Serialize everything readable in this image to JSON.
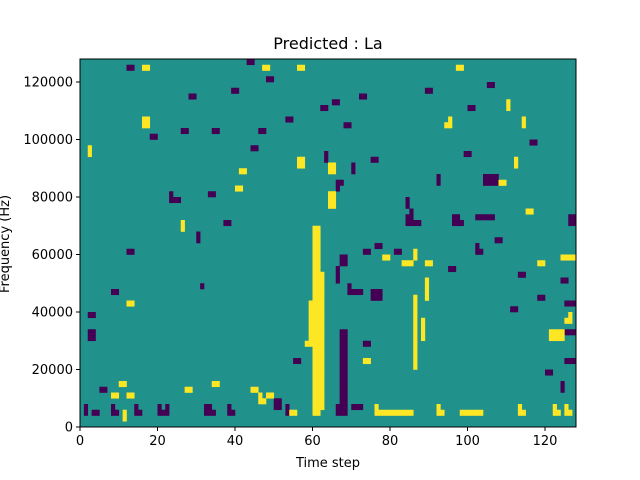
{
  "chart_data": {
    "type": "heatmap",
    "title": "Predicted : La",
    "xlabel": "Time step",
    "ylabel": "Frequency (Hz)",
    "xlim": [
      0,
      128
    ],
    "ylim": [
      0,
      128000
    ],
    "x_ticks": [
      0,
      20,
      40,
      60,
      80,
      100,
      120
    ],
    "x_tick_labels": [
      "0",
      "20",
      "40",
      "60",
      "80",
      "100",
      "120"
    ],
    "y_ticks": [
      0,
      20000,
      40000,
      60000,
      80000,
      100000,
      120000
    ],
    "y_tick_labels": [
      "0",
      "20000",
      "40000",
      "60000",
      "80000",
      "100000",
      "120000"
    ],
    "grid": false,
    "legend": "none",
    "colormap": "viridis",
    "n_time_steps": 128,
    "n_freq_bins": 64,
    "freq_bin_hz": 2000,
    "levels": {
      "low": 0,
      "mid": 1,
      "high": 2
    },
    "background_level": 1,
    "colors": {
      "low": "#440154",
      "mid": "#21918c",
      "high": "#fde725"
    },
    "cells_high": [
      [
        60,
        2
      ],
      [
        60,
        3
      ],
      [
        60,
        4
      ],
      [
        60,
        5
      ],
      [
        60,
        6
      ],
      [
        60,
        7
      ],
      [
        60,
        8
      ],
      [
        60,
        9
      ],
      [
        60,
        10
      ],
      [
        60,
        11
      ],
      [
        60,
        12
      ],
      [
        60,
        13
      ],
      [
        60,
        14
      ],
      [
        60,
        15
      ],
      [
        60,
        16
      ],
      [
        60,
        17
      ],
      [
        60,
        18
      ],
      [
        60,
        19
      ],
      [
        60,
        20
      ],
      [
        60,
        21
      ],
      [
        60,
        22
      ],
      [
        60,
        23
      ],
      [
        60,
        24
      ],
      [
        60,
        25
      ],
      [
        60,
        26
      ],
      [
        60,
        27
      ],
      [
        60,
        28
      ],
      [
        60,
        29
      ],
      [
        60,
        30
      ],
      [
        60,
        31
      ],
      [
        60,
        32
      ],
      [
        60,
        33
      ],
      [
        60,
        34
      ],
      [
        61,
        2
      ],
      [
        61,
        3
      ],
      [
        61,
        4
      ],
      [
        61,
        5
      ],
      [
        61,
        6
      ],
      [
        61,
        7
      ],
      [
        61,
        8
      ],
      [
        61,
        9
      ],
      [
        61,
        10
      ],
      [
        61,
        11
      ],
      [
        61,
        12
      ],
      [
        61,
        13
      ],
      [
        61,
        14
      ],
      [
        61,
        15
      ],
      [
        61,
        16
      ],
      [
        61,
        17
      ],
      [
        61,
        18
      ],
      [
        61,
        19
      ],
      [
        61,
        20
      ],
      [
        61,
        21
      ],
      [
        61,
        22
      ],
      [
        61,
        23
      ],
      [
        61,
        24
      ],
      [
        61,
        25
      ],
      [
        61,
        26
      ],
      [
        61,
        27
      ],
      [
        61,
        28
      ],
      [
        61,
        29
      ],
      [
        61,
        30
      ],
      [
        61,
        31
      ],
      [
        61,
        32
      ],
      [
        61,
        33
      ],
      [
        61,
        34
      ],
      [
        62,
        3
      ],
      [
        62,
        4
      ],
      [
        62,
        5
      ],
      [
        62,
        6
      ],
      [
        62,
        7
      ],
      [
        62,
        8
      ],
      [
        62,
        9
      ],
      [
        62,
        10
      ],
      [
        62,
        11
      ],
      [
        62,
        12
      ],
      [
        62,
        13
      ],
      [
        62,
        14
      ],
      [
        62,
        15
      ],
      [
        62,
        16
      ],
      [
        62,
        17
      ],
      [
        62,
        18
      ],
      [
        62,
        19
      ],
      [
        62,
        20
      ],
      [
        62,
        21
      ],
      [
        62,
        22
      ],
      [
        62,
        23
      ],
      [
        62,
        24
      ],
      [
        62,
        25
      ],
      [
        62,
        26
      ],
      [
        59,
        14
      ],
      [
        59,
        15
      ],
      [
        59,
        16
      ],
      [
        59,
        17
      ],
      [
        59,
        18
      ],
      [
        59,
        19
      ],
      [
        59,
        20
      ],
      [
        59,
        21
      ],
      [
        64,
        44
      ],
      [
        64,
        45
      ],
      [
        65,
        44
      ],
      [
        65,
        45
      ],
      [
        64,
        38
      ],
      [
        64,
        39
      ],
      [
        65,
        38
      ],
      [
        65,
        39
      ],
      [
        64,
        40
      ],
      [
        65,
        40
      ],
      [
        56,
        45
      ],
      [
        57,
        45
      ],
      [
        56,
        46
      ],
      [
        57,
        46
      ],
      [
        76,
        2
      ],
      [
        76,
        3
      ],
      [
        77,
        2
      ],
      [
        78,
        2
      ],
      [
        79,
        2
      ],
      [
        80,
        2
      ],
      [
        81,
        2
      ],
      [
        82,
        2
      ],
      [
        83,
        2
      ],
      [
        84,
        2
      ],
      [
        85,
        2
      ],
      [
        86,
        10
      ],
      [
        86,
        11
      ],
      [
        86,
        12
      ],
      [
        86,
        13
      ],
      [
        86,
        14
      ],
      [
        86,
        15
      ],
      [
        86,
        16
      ],
      [
        86,
        17
      ],
      [
        86,
        18
      ],
      [
        86,
        19
      ],
      [
        86,
        20
      ],
      [
        86,
        21
      ],
      [
        86,
        22
      ],
      [
        88,
        15
      ],
      [
        88,
        16
      ],
      [
        88,
        17
      ],
      [
        88,
        18
      ],
      [
        89,
        22
      ],
      [
        89,
        23
      ],
      [
        89,
        24
      ],
      [
        89,
        25
      ],
      [
        92,
        2
      ],
      [
        92,
        3
      ],
      [
        93,
        2
      ],
      [
        98,
        2
      ],
      [
        99,
        2
      ],
      [
        100,
        2
      ],
      [
        101,
        2
      ],
      [
        102,
        2
      ],
      [
        103,
        2
      ],
      [
        113,
        2
      ],
      [
        113,
        3
      ],
      [
        114,
        2
      ],
      [
        122,
        2
      ],
      [
        122,
        3
      ],
      [
        123,
        2
      ],
      [
        125,
        2
      ],
      [
        125,
        3
      ],
      [
        126,
        2
      ],
      [
        121,
        15
      ],
      [
        121,
        16
      ],
      [
        122,
        15
      ],
      [
        122,
        16
      ],
      [
        123,
        15
      ],
      [
        123,
        16
      ],
      [
        124,
        15
      ],
      [
        124,
        16
      ],
      [
        114,
        52
      ],
      [
        114,
        53
      ],
      [
        110,
        55
      ],
      [
        110,
        56
      ],
      [
        112,
        45
      ],
      [
        112,
        46
      ],
      [
        47,
        62
      ],
      [
        48,
        62
      ],
      [
        56,
        62
      ],
      [
        57,
        62
      ],
      [
        16,
        62
      ],
      [
        17,
        62
      ],
      [
        97,
        62
      ],
      [
        98,
        62
      ],
      [
        8,
        5
      ],
      [
        9,
        5
      ],
      [
        10,
        7
      ],
      [
        11,
        7
      ],
      [
        12,
        5
      ],
      [
        13,
        5
      ],
      [
        11,
        1
      ],
      [
        11,
        2
      ],
      [
        27,
        6
      ],
      [
        28,
        6
      ],
      [
        34,
        7
      ],
      [
        35,
        7
      ],
      [
        44,
        6
      ],
      [
        45,
        6
      ],
      [
        46,
        4
      ],
      [
        46,
        5
      ],
      [
        47,
        4
      ],
      [
        48,
        5
      ],
      [
        49,
        5
      ],
      [
        2,
        47
      ],
      [
        2,
        48
      ],
      [
        26,
        34
      ],
      [
        26,
        35
      ],
      [
        16,
        52
      ],
      [
        16,
        53
      ],
      [
        17,
        52
      ],
      [
        17,
        53
      ],
      [
        12,
        21
      ],
      [
        13,
        21
      ],
      [
        40,
        41
      ],
      [
        41,
        41
      ],
      [
        41,
        44
      ],
      [
        42,
        44
      ],
      [
        54,
        2
      ],
      [
        55,
        2
      ],
      [
        58,
        14
      ],
      [
        73,
        11
      ],
      [
        74,
        11
      ],
      [
        78,
        29
      ],
      [
        79,
        29
      ],
      [
        83,
        28
      ],
      [
        84,
        28
      ],
      [
        85,
        28
      ],
      [
        86,
        29
      ],
      [
        86,
        30
      ],
      [
        89,
        28
      ],
      [
        90,
        28
      ],
      [
        94,
        52
      ],
      [
        95,
        52
      ],
      [
        95,
        53
      ],
      [
        108,
        42
      ],
      [
        109,
        42
      ],
      [
        115,
        37
      ],
      [
        116,
        37
      ],
      [
        118,
        28
      ],
      [
        119,
        28
      ],
      [
        124,
        29
      ],
      [
        125,
        29
      ],
      [
        126,
        29
      ],
      [
        127,
        29
      ],
      [
        125,
        18
      ],
      [
        126,
        18
      ],
      [
        126,
        19
      ]
    ],
    "cells_low": [
      [
        1,
        2
      ],
      [
        1,
        3
      ],
      [
        8,
        2
      ],
      [
        8,
        3
      ],
      [
        9,
        2
      ],
      [
        14,
        2
      ],
      [
        14,
        3
      ],
      [
        15,
        2
      ],
      [
        20,
        2
      ],
      [
        20,
        3
      ],
      [
        21,
        2
      ],
      [
        22,
        2
      ],
      [
        22,
        3
      ],
      [
        32,
        2
      ],
      [
        32,
        3
      ],
      [
        33,
        2
      ],
      [
        33,
        3
      ],
      [
        34,
        2
      ],
      [
        38,
        2
      ],
      [
        38,
        3
      ],
      [
        39,
        2
      ],
      [
        66,
        2
      ],
      [
        66,
        3
      ],
      [
        67,
        2
      ],
      [
        67,
        3
      ],
      [
        67,
        4
      ],
      [
        67,
        5
      ],
      [
        67,
        6
      ],
      [
        67,
        7
      ],
      [
        67,
        8
      ],
      [
        67,
        9
      ],
      [
        67,
        10
      ],
      [
        67,
        11
      ],
      [
        67,
        12
      ],
      [
        67,
        13
      ],
      [
        67,
        14
      ],
      [
        67,
        15
      ],
      [
        67,
        16
      ],
      [
        68,
        2
      ],
      [
        68,
        3
      ],
      [
        68,
        4
      ],
      [
        68,
        5
      ],
      [
        68,
        6
      ],
      [
        68,
        7
      ],
      [
        68,
        8
      ],
      [
        68,
        9
      ],
      [
        68,
        10
      ],
      [
        68,
        11
      ],
      [
        68,
        12
      ],
      [
        68,
        13
      ],
      [
        68,
        14
      ],
      [
        68,
        15
      ],
      [
        68,
        16
      ],
      [
        66,
        25
      ],
      [
        66,
        26
      ],
      [
        66,
        27
      ],
      [
        67,
        28
      ],
      [
        67,
        29
      ],
      [
        68,
        28
      ],
      [
        68,
        29
      ],
      [
        69,
        23
      ],
      [
        69,
        24
      ],
      [
        70,
        23
      ],
      [
        71,
        23
      ],
      [
        72,
        23
      ],
      [
        73,
        30
      ],
      [
        74,
        30
      ],
      [
        84,
        35
      ],
      [
        84,
        36
      ],
      [
        85,
        35
      ],
      [
        85,
        36
      ],
      [
        85,
        37
      ],
      [
        86,
        35
      ],
      [
        87,
        35
      ],
      [
        96,
        35
      ],
      [
        96,
        36
      ],
      [
        97,
        35
      ],
      [
        97,
        36
      ],
      [
        98,
        35
      ],
      [
        102,
        36
      ],
      [
        103,
        36
      ],
      [
        104,
        36
      ],
      [
        105,
        36
      ],
      [
        106,
        36
      ],
      [
        104,
        42
      ],
      [
        105,
        42
      ],
      [
        106,
        42
      ],
      [
        107,
        42
      ],
      [
        104,
        43
      ],
      [
        105,
        43
      ],
      [
        106,
        43
      ],
      [
        107,
        43
      ],
      [
        76,
        22
      ],
      [
        76,
        23
      ],
      [
        77,
        22
      ],
      [
        77,
        23
      ],
      [
        73,
        14
      ],
      [
        74,
        14
      ],
      [
        75,
        22
      ],
      [
        75,
        23
      ],
      [
        23,
        39
      ],
      [
        23,
        40
      ],
      [
        24,
        39
      ],
      [
        25,
        39
      ],
      [
        5,
        6
      ],
      [
        6,
        6
      ],
      [
        3,
        2
      ],
      [
        4,
        2
      ],
      [
        2,
        15
      ],
      [
        2,
        16
      ],
      [
        3,
        15
      ],
      [
        3,
        16
      ],
      [
        2,
        19
      ],
      [
        3,
        19
      ],
      [
        31,
        24
      ],
      [
        30,
        32
      ],
      [
        30,
        33
      ],
      [
        33,
        40
      ],
      [
        34,
        40
      ],
      [
        37,
        35
      ],
      [
        38,
        35
      ],
      [
        50,
        3
      ],
      [
        50,
        4
      ],
      [
        51,
        3
      ],
      [
        51,
        4
      ],
      [
        53,
        2
      ],
      [
        53,
        3
      ],
      [
        70,
        3
      ],
      [
        71,
        3
      ],
      [
        72,
        3
      ],
      [
        125,
        11
      ],
      [
        126,
        11
      ],
      [
        127,
        11
      ],
      [
        125,
        21
      ],
      [
        126,
        21
      ],
      [
        127,
        21
      ],
      [
        125,
        16
      ],
      [
        126,
        16
      ],
      [
        127,
        16
      ],
      [
        124,
        25
      ],
      [
        125,
        25
      ],
      [
        126,
        35
      ],
      [
        127,
        35
      ],
      [
        126,
        36
      ],
      [
        127,
        36
      ],
      [
        8,
        23
      ],
      [
        9,
        23
      ],
      [
        12,
        30
      ],
      [
        13,
        30
      ],
      [
        26,
        51
      ],
      [
        27,
        51
      ],
      [
        34,
        51
      ],
      [
        35,
        51
      ],
      [
        39,
        58
      ],
      [
        40,
        58
      ],
      [
        46,
        51
      ],
      [
        47,
        51
      ],
      [
        48,
        60
      ],
      [
        49,
        60
      ],
      [
        53,
        53
      ],
      [
        54,
        53
      ],
      [
        63,
        46
      ],
      [
        63,
        47
      ],
      [
        66,
        41
      ],
      [
        66,
        42
      ],
      [
        67,
        42
      ],
      [
        68,
        52
      ],
      [
        69,
        52
      ],
      [
        70,
        44
      ],
      [
        70,
        45
      ],
      [
        75,
        46
      ],
      [
        76,
        46
      ],
      [
        81,
        30
      ],
      [
        82,
        30
      ],
      [
        89,
        58
      ],
      [
        90,
        58
      ],
      [
        92,
        42
      ],
      [
        92,
        43
      ],
      [
        95,
        27
      ],
      [
        96,
        27
      ],
      [
        99,
        47
      ],
      [
        100,
        47
      ],
      [
        102,
        30
      ],
      [
        102,
        31
      ],
      [
        103,
        30
      ],
      [
        107,
        32
      ],
      [
        108,
        32
      ],
      [
        111,
        20
      ],
      [
        112,
        20
      ],
      [
        113,
        26
      ],
      [
        114,
        26
      ],
      [
        116,
        49
      ],
      [
        117,
        49
      ],
      [
        118,
        22
      ],
      [
        119,
        22
      ],
      [
        120,
        9
      ],
      [
        121,
        9
      ],
      [
        124,
        6
      ],
      [
        124,
        7
      ],
      [
        44,
        48
      ],
      [
        45,
        48
      ],
      [
        55,
        11
      ],
      [
        56,
        11
      ],
      [
        62,
        55
      ],
      [
        63,
        55
      ],
      [
        72,
        57
      ],
      [
        73,
        57
      ],
      [
        84,
        38
      ],
      [
        84,
        39
      ],
      [
        12,
        62
      ],
      [
        13,
        62
      ],
      [
        18,
        50
      ],
      [
        19,
        50
      ],
      [
        28,
        57
      ],
      [
        29,
        57
      ],
      [
        43,
        63
      ],
      [
        44,
        63
      ],
      [
        65,
        56
      ],
      [
        66,
        56
      ],
      [
        76,
        31
      ],
      [
        77,
        31
      ],
      [
        100,
        55
      ],
      [
        101,
        55
      ],
      [
        105,
        59
      ],
      [
        106,
        59
      ]
    ]
  }
}
